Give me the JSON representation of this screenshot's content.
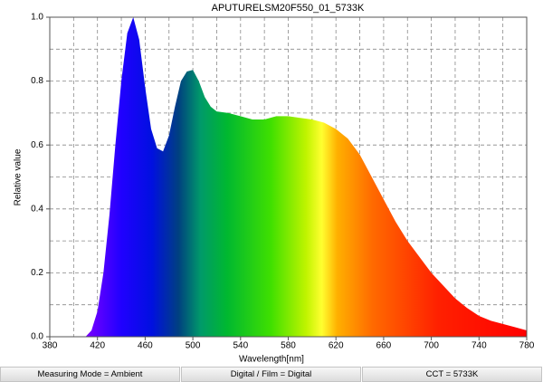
{
  "chart_data": {
    "type": "area",
    "title": "APUTURELSM20F550_01_5733K",
    "x_label": "Wavelength[nm]",
    "y_label": "Relative value",
    "x": [
      410,
      415,
      420,
      425,
      430,
      435,
      440,
      445,
      450,
      455,
      460,
      465,
      470,
      475,
      480,
      485,
      490,
      495,
      500,
      505,
      510,
      515,
      520,
      530,
      540,
      550,
      560,
      570,
      575,
      580,
      590,
      600,
      610,
      620,
      630,
      640,
      650,
      660,
      670,
      680,
      690,
      700,
      710,
      720,
      730,
      740,
      750,
      760,
      770,
      780
    ],
    "values": [
      0.0,
      0.02,
      0.08,
      0.2,
      0.38,
      0.6,
      0.8,
      0.95,
      1.0,
      0.93,
      0.78,
      0.65,
      0.59,
      0.58,
      0.63,
      0.72,
      0.8,
      0.83,
      0.835,
      0.8,
      0.75,
      0.72,
      0.705,
      0.7,
      0.69,
      0.68,
      0.68,
      0.69,
      0.69,
      0.69,
      0.685,
      0.68,
      0.67,
      0.65,
      0.62,
      0.57,
      0.5,
      0.43,
      0.36,
      0.3,
      0.25,
      0.2,
      0.16,
      0.12,
      0.09,
      0.065,
      0.05,
      0.04,
      0.03,
      0.02
    ],
    "xlim": [
      380,
      780
    ],
    "xticks": [
      380,
      420,
      460,
      500,
      540,
      580,
      620,
      660,
      700,
      740,
      780
    ],
    "xgrid": [
      400,
      420,
      440,
      460,
      480,
      500,
      520,
      540,
      560,
      580,
      600,
      620,
      640,
      660,
      680,
      700,
      720,
      740,
      760
    ],
    "ylim": [
      0,
      1
    ],
    "yticks": [
      {
        "value": 0,
        "label": "0.0"
      },
      0.2,
      0.4,
      0.6,
      0.8,
      {
        "value": 1,
        "label": "1.0"
      }
    ],
    "ygrid": [
      0.1,
      0.2,
      0.3,
      0.4,
      0.5,
      0.6,
      0.7,
      0.8,
      0.9
    ],
    "grid": true,
    "status_bar": [
      "Measuring Mode = Ambient",
      "Digital / Film = Digital",
      "CCT = 5733K"
    ]
  }
}
